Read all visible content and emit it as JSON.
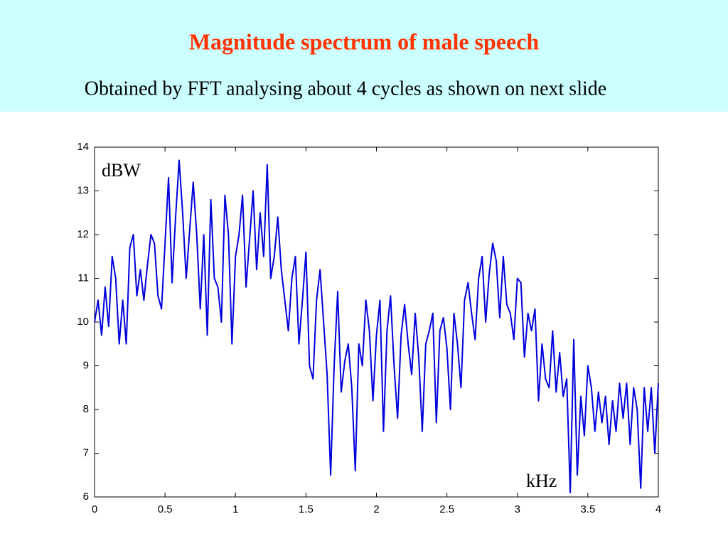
{
  "chart_data": {
    "type": "line",
    "title": "Magnitude spectrum of male speech",
    "subtitle": "Obtained by FFT analysing about 4 cycles as shown on next slide",
    "y_label": "dBW",
    "x_label": "kHz",
    "color": "#0000dd",
    "xlim": [
      0,
      4
    ],
    "ylim": [
      6,
      14
    ],
    "xticks": [
      0,
      0.5,
      1,
      1.5,
      2,
      2.5,
      3,
      3.5,
      4
    ],
    "yticks": [
      6,
      7,
      8,
      9,
      10,
      11,
      12,
      13,
      14
    ],
    "x": [
      0,
      0.025,
      0.05,
      0.075,
      0.1,
      0.125,
      0.15,
      0.175,
      0.2,
      0.225,
      0.25,
      0.275,
      0.3,
      0.325,
      0.35,
      0.375,
      0.4,
      0.425,
      0.45,
      0.475,
      0.5,
      0.525,
      0.55,
      0.575,
      0.6,
      0.625,
      0.65,
      0.675,
      0.7,
      0.725,
      0.75,
      0.775,
      0.8,
      0.825,
      0.85,
      0.875,
      0.9,
      0.925,
      0.95,
      0.975,
      1,
      1.025,
      1.05,
      1.075,
      1.1,
      1.125,
      1.15,
      1.175,
      1.2,
      1.225,
      1.25,
      1.275,
      1.3,
      1.325,
      1.35,
      1.375,
      1.4,
      1.425,
      1.45,
      1.475,
      1.5,
      1.525,
      1.55,
      1.575,
      1.6,
      1.625,
      1.65,
      1.675,
      1.7,
      1.725,
      1.75,
      1.775,
      1.8,
      1.825,
      1.85,
      1.875,
      1.9,
      1.925,
      1.95,
      1.975,
      2,
      2.025,
      2.05,
      2.075,
      2.1,
      2.125,
      2.15,
      2.175,
      2.2,
      2.225,
      2.25,
      2.275,
      2.3,
      2.325,
      2.35,
      2.375,
      2.4,
      2.425,
      2.45,
      2.475,
      2.5,
      2.525,
      2.55,
      2.575,
      2.6,
      2.625,
      2.65,
      2.675,
      2.7,
      2.725,
      2.75,
      2.775,
      2.8,
      2.825,
      2.85,
      2.875,
      2.9,
      2.925,
      2.95,
      2.975,
      3,
      3.025,
      3.05,
      3.075,
      3.1,
      3.125,
      3.15,
      3.175,
      3.2,
      3.225,
      3.25,
      3.275,
      3.3,
      3.325,
      3.35,
      3.375,
      3.4,
      3.425,
      3.45,
      3.475,
      3.5,
      3.525,
      3.55,
      3.575,
      3.6,
      3.625,
      3.65,
      3.675,
      3.7,
      3.725,
      3.75,
      3.775,
      3.8,
      3.825,
      3.85,
      3.875,
      3.9,
      3.925,
      3.95,
      3.975,
      4
    ],
    "values": [
      10.0,
      10.5,
      9.7,
      10.8,
      9.9,
      11.5,
      11.0,
      9.5,
      10.5,
      9.5,
      11.7,
      12.0,
      10.6,
      11.2,
      10.5,
      11.3,
      12.0,
      11.8,
      10.6,
      10.3,
      11.8,
      13.3,
      10.9,
      12.4,
      13.7,
      12.5,
      11.0,
      12.1,
      13.2,
      12.0,
      10.3,
      12.0,
      9.7,
      12.8,
      11.0,
      10.8,
      10.0,
      12.9,
      12.0,
      9.5,
      11.5,
      12.0,
      12.9,
      10.8,
      11.9,
      13.0,
      11.2,
      12.5,
      11.5,
      13.6,
      11.0,
      11.5,
      12.4,
      11.2,
      10.5,
      9.8,
      11.0,
      11.5,
      9.5,
      10.5,
      11.6,
      9.0,
      8.7,
      10.5,
      11.2,
      10.0,
      8.8,
      6.5,
      9.0,
      10.7,
      8.4,
      9.1,
      9.5,
      8.5,
      6.6,
      9.5,
      9.0,
      10.5,
      9.8,
      8.2,
      9.7,
      10.5,
      7.5,
      9.8,
      10.6,
      9.0,
      7.8,
      9.7,
      10.4,
      9.5,
      8.8,
      10.2,
      9.2,
      7.5,
      9.5,
      9.8,
      10.2,
      7.7,
      9.8,
      10.1,
      9.4,
      8.0,
      10.2,
      9.5,
      8.5,
      10.5,
      10.9,
      10.2,
      9.6,
      11.0,
      11.5,
      10.0,
      11.1,
      11.8,
      11.4,
      10.1,
      11.5,
      10.4,
      10.2,
      9.6,
      11.0,
      10.9,
      9.2,
      10.2,
      9.8,
      10.3,
      8.2,
      9.5,
      8.7,
      8.5,
      9.8,
      8.4,
      9.3,
      8.3,
      8.7,
      6.1,
      9.6,
      6.5,
      8.3,
      7.4,
      9.0,
      8.5,
      7.5,
      8.4,
      7.7,
      8.3,
      7.2,
      8.2,
      7.5,
      8.6,
      7.8,
      8.6,
      7.2,
      8.5,
      8.0,
      6.2,
      8.5,
      7.5,
      8.5,
      7.0,
      8.6
    ]
  }
}
